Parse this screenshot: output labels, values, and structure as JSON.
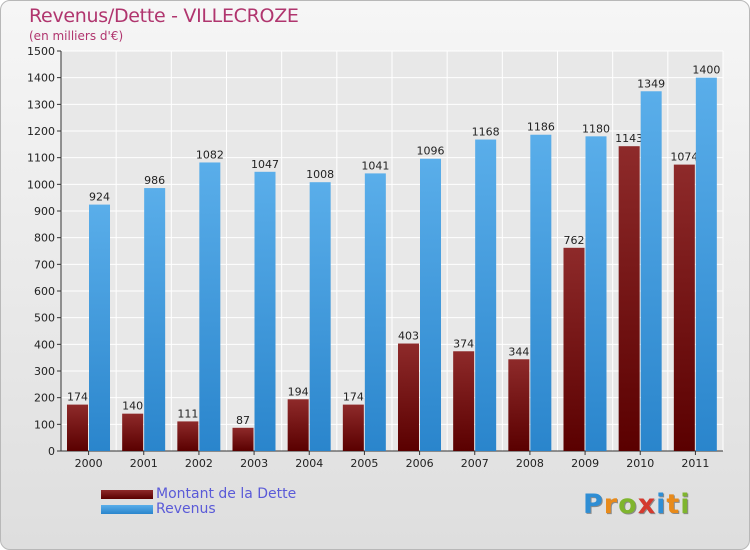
{
  "chart_data": {
    "type": "bar",
    "title": "Revenus/Dette - VILLECROZE",
    "subtitle": "(en milliers d'€)",
    "categories": [
      "2000",
      "2001",
      "2002",
      "2003",
      "2004",
      "2005",
      "2006",
      "2007",
      "2008",
      "2009",
      "2010",
      "2011"
    ],
    "series": [
      {
        "name": "Montant de la Dette",
        "color": "#7a1414",
        "values": [
          174,
          140,
          111,
          87,
          194,
          174,
          403,
          374,
          344,
          762,
          1143,
          1074
        ]
      },
      {
        "name": "Revenus",
        "color": "#3d9ae0",
        "values": [
          924,
          986,
          1082,
          1047,
          1008,
          1041,
          1096,
          1168,
          1186,
          1180,
          1349,
          1400
        ]
      }
    ],
    "ylim": [
      0,
      1500
    ],
    "yticks": [
      0,
      100,
      200,
      300,
      400,
      500,
      600,
      700,
      800,
      900,
      1000,
      1100,
      1200,
      1300,
      1400,
      1500
    ],
    "grid": true,
    "legend": "bottom-left"
  },
  "logo": {
    "text": "Proxiti"
  }
}
